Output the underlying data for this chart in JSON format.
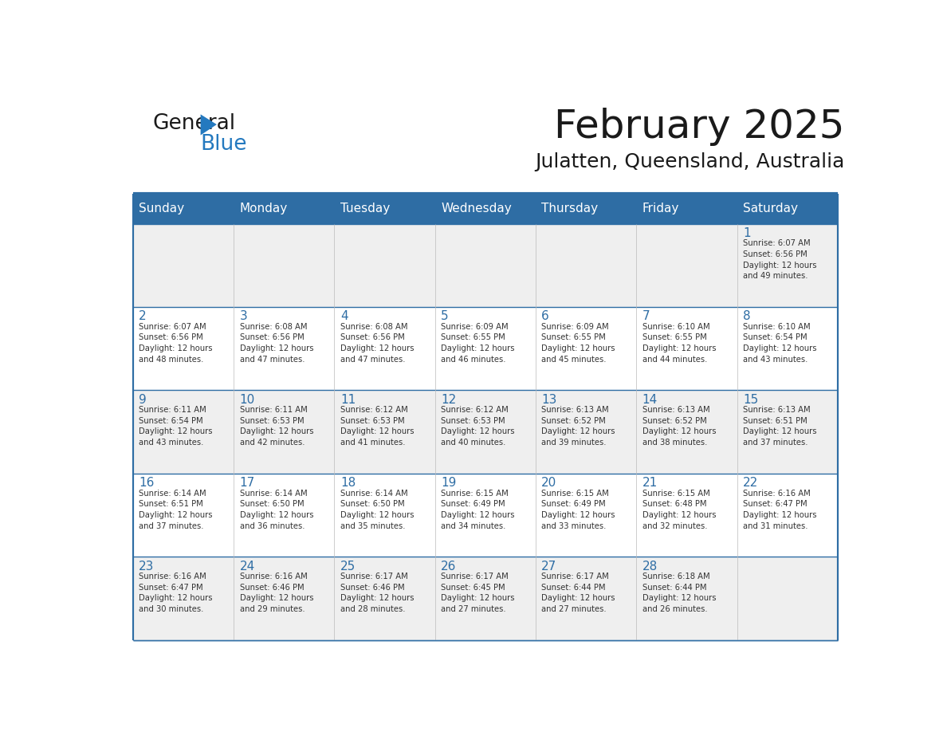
{
  "title": "February 2025",
  "subtitle": "Julatten, Queensland, Australia",
  "days_of_week": [
    "Sunday",
    "Monday",
    "Tuesday",
    "Wednesday",
    "Thursday",
    "Friday",
    "Saturday"
  ],
  "header_bg": "#2E6DA4",
  "header_text_color": "#FFFFFF",
  "cell_bg_odd": "#EFEFEF",
  "cell_bg_even": "#FFFFFF",
  "border_color": "#2E6DA4",
  "title_color": "#1a1a1a",
  "subtitle_color": "#1a1a1a",
  "day_num_color": "#2E6DA4",
  "cell_text_color": "#333333",
  "logo_general_color": "#1a1a1a",
  "logo_blue_color": "#2479BF",
  "calendar_data": [
    [
      {
        "day": null,
        "info": null
      },
      {
        "day": null,
        "info": null
      },
      {
        "day": null,
        "info": null
      },
      {
        "day": null,
        "info": null
      },
      {
        "day": null,
        "info": null
      },
      {
        "day": null,
        "info": null
      },
      {
        "day": 1,
        "info": "Sunrise: 6:07 AM\nSunset: 6:56 PM\nDaylight: 12 hours\nand 49 minutes."
      }
    ],
    [
      {
        "day": 2,
        "info": "Sunrise: 6:07 AM\nSunset: 6:56 PM\nDaylight: 12 hours\nand 48 minutes."
      },
      {
        "day": 3,
        "info": "Sunrise: 6:08 AM\nSunset: 6:56 PM\nDaylight: 12 hours\nand 47 minutes."
      },
      {
        "day": 4,
        "info": "Sunrise: 6:08 AM\nSunset: 6:56 PM\nDaylight: 12 hours\nand 47 minutes."
      },
      {
        "day": 5,
        "info": "Sunrise: 6:09 AM\nSunset: 6:55 PM\nDaylight: 12 hours\nand 46 minutes."
      },
      {
        "day": 6,
        "info": "Sunrise: 6:09 AM\nSunset: 6:55 PM\nDaylight: 12 hours\nand 45 minutes."
      },
      {
        "day": 7,
        "info": "Sunrise: 6:10 AM\nSunset: 6:55 PM\nDaylight: 12 hours\nand 44 minutes."
      },
      {
        "day": 8,
        "info": "Sunrise: 6:10 AM\nSunset: 6:54 PM\nDaylight: 12 hours\nand 43 minutes."
      }
    ],
    [
      {
        "day": 9,
        "info": "Sunrise: 6:11 AM\nSunset: 6:54 PM\nDaylight: 12 hours\nand 43 minutes."
      },
      {
        "day": 10,
        "info": "Sunrise: 6:11 AM\nSunset: 6:53 PM\nDaylight: 12 hours\nand 42 minutes."
      },
      {
        "day": 11,
        "info": "Sunrise: 6:12 AM\nSunset: 6:53 PM\nDaylight: 12 hours\nand 41 minutes."
      },
      {
        "day": 12,
        "info": "Sunrise: 6:12 AM\nSunset: 6:53 PM\nDaylight: 12 hours\nand 40 minutes."
      },
      {
        "day": 13,
        "info": "Sunrise: 6:13 AM\nSunset: 6:52 PM\nDaylight: 12 hours\nand 39 minutes."
      },
      {
        "day": 14,
        "info": "Sunrise: 6:13 AM\nSunset: 6:52 PM\nDaylight: 12 hours\nand 38 minutes."
      },
      {
        "day": 15,
        "info": "Sunrise: 6:13 AM\nSunset: 6:51 PM\nDaylight: 12 hours\nand 37 minutes."
      }
    ],
    [
      {
        "day": 16,
        "info": "Sunrise: 6:14 AM\nSunset: 6:51 PM\nDaylight: 12 hours\nand 37 minutes."
      },
      {
        "day": 17,
        "info": "Sunrise: 6:14 AM\nSunset: 6:50 PM\nDaylight: 12 hours\nand 36 minutes."
      },
      {
        "day": 18,
        "info": "Sunrise: 6:14 AM\nSunset: 6:50 PM\nDaylight: 12 hours\nand 35 minutes."
      },
      {
        "day": 19,
        "info": "Sunrise: 6:15 AM\nSunset: 6:49 PM\nDaylight: 12 hours\nand 34 minutes."
      },
      {
        "day": 20,
        "info": "Sunrise: 6:15 AM\nSunset: 6:49 PM\nDaylight: 12 hours\nand 33 minutes."
      },
      {
        "day": 21,
        "info": "Sunrise: 6:15 AM\nSunset: 6:48 PM\nDaylight: 12 hours\nand 32 minutes."
      },
      {
        "day": 22,
        "info": "Sunrise: 6:16 AM\nSunset: 6:47 PM\nDaylight: 12 hours\nand 31 minutes."
      }
    ],
    [
      {
        "day": 23,
        "info": "Sunrise: 6:16 AM\nSunset: 6:47 PM\nDaylight: 12 hours\nand 30 minutes."
      },
      {
        "day": 24,
        "info": "Sunrise: 6:16 AM\nSunset: 6:46 PM\nDaylight: 12 hours\nand 29 minutes."
      },
      {
        "day": 25,
        "info": "Sunrise: 6:17 AM\nSunset: 6:46 PM\nDaylight: 12 hours\nand 28 minutes."
      },
      {
        "day": 26,
        "info": "Sunrise: 6:17 AM\nSunset: 6:45 PM\nDaylight: 12 hours\nand 27 minutes."
      },
      {
        "day": 27,
        "info": "Sunrise: 6:17 AM\nSunset: 6:44 PM\nDaylight: 12 hours\nand 27 minutes."
      },
      {
        "day": 28,
        "info": "Sunrise: 6:18 AM\nSunset: 6:44 PM\nDaylight: 12 hours\nand 26 minutes."
      },
      {
        "day": null,
        "info": null
      }
    ]
  ]
}
